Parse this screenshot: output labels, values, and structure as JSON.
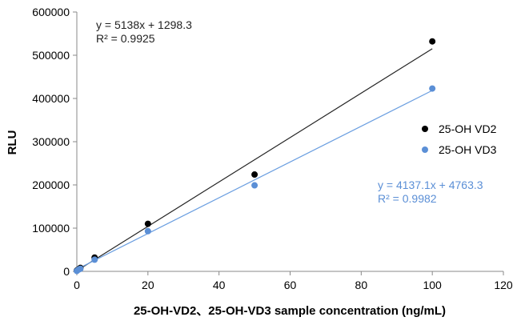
{
  "chart_data": {
    "type": "scatter",
    "title": "",
    "xlabel": "25-OH-VD2、25-OH-VD3 sample concentration (ng/mL)",
    "ylabel": "RLU",
    "xlim": [
      0,
      120
    ],
    "ylim": [
      0,
      600000
    ],
    "xticks": [
      0,
      20,
      40,
      60,
      80,
      100,
      120
    ],
    "yticks": [
      0,
      100000,
      200000,
      300000,
      400000,
      500000,
      600000
    ],
    "grid": false,
    "legend_position": "right",
    "series": [
      {
        "name": "25-OH VD2",
        "color": "#000000",
        "x": [
          0,
          0.5,
          1,
          5,
          20,
          50,
          100
        ],
        "y": [
          2000,
          5000,
          8000,
          32000,
          110000,
          224000,
          532000
        ],
        "trendline": {
          "slope": 5138,
          "intercept": 1298.3
        },
        "equation": "y = 5138x + 1298.3",
        "r2": "R² = 0.9925",
        "line_color": "#222222"
      },
      {
        "name": "25-OH VD3",
        "color": "#5b8fd6",
        "x": [
          0,
          0.5,
          1,
          5,
          20,
          50,
          100
        ],
        "y": [
          1000,
          4000,
          6000,
          27000,
          93000,
          199000,
          423000
        ],
        "trendline": {
          "slope": 4137.1,
          "intercept": 4763.3
        },
        "equation": "y = 4137.1x + 4763.3",
        "r2": "R² = 0.9982",
        "line_color": "#6a9ee0"
      }
    ]
  }
}
